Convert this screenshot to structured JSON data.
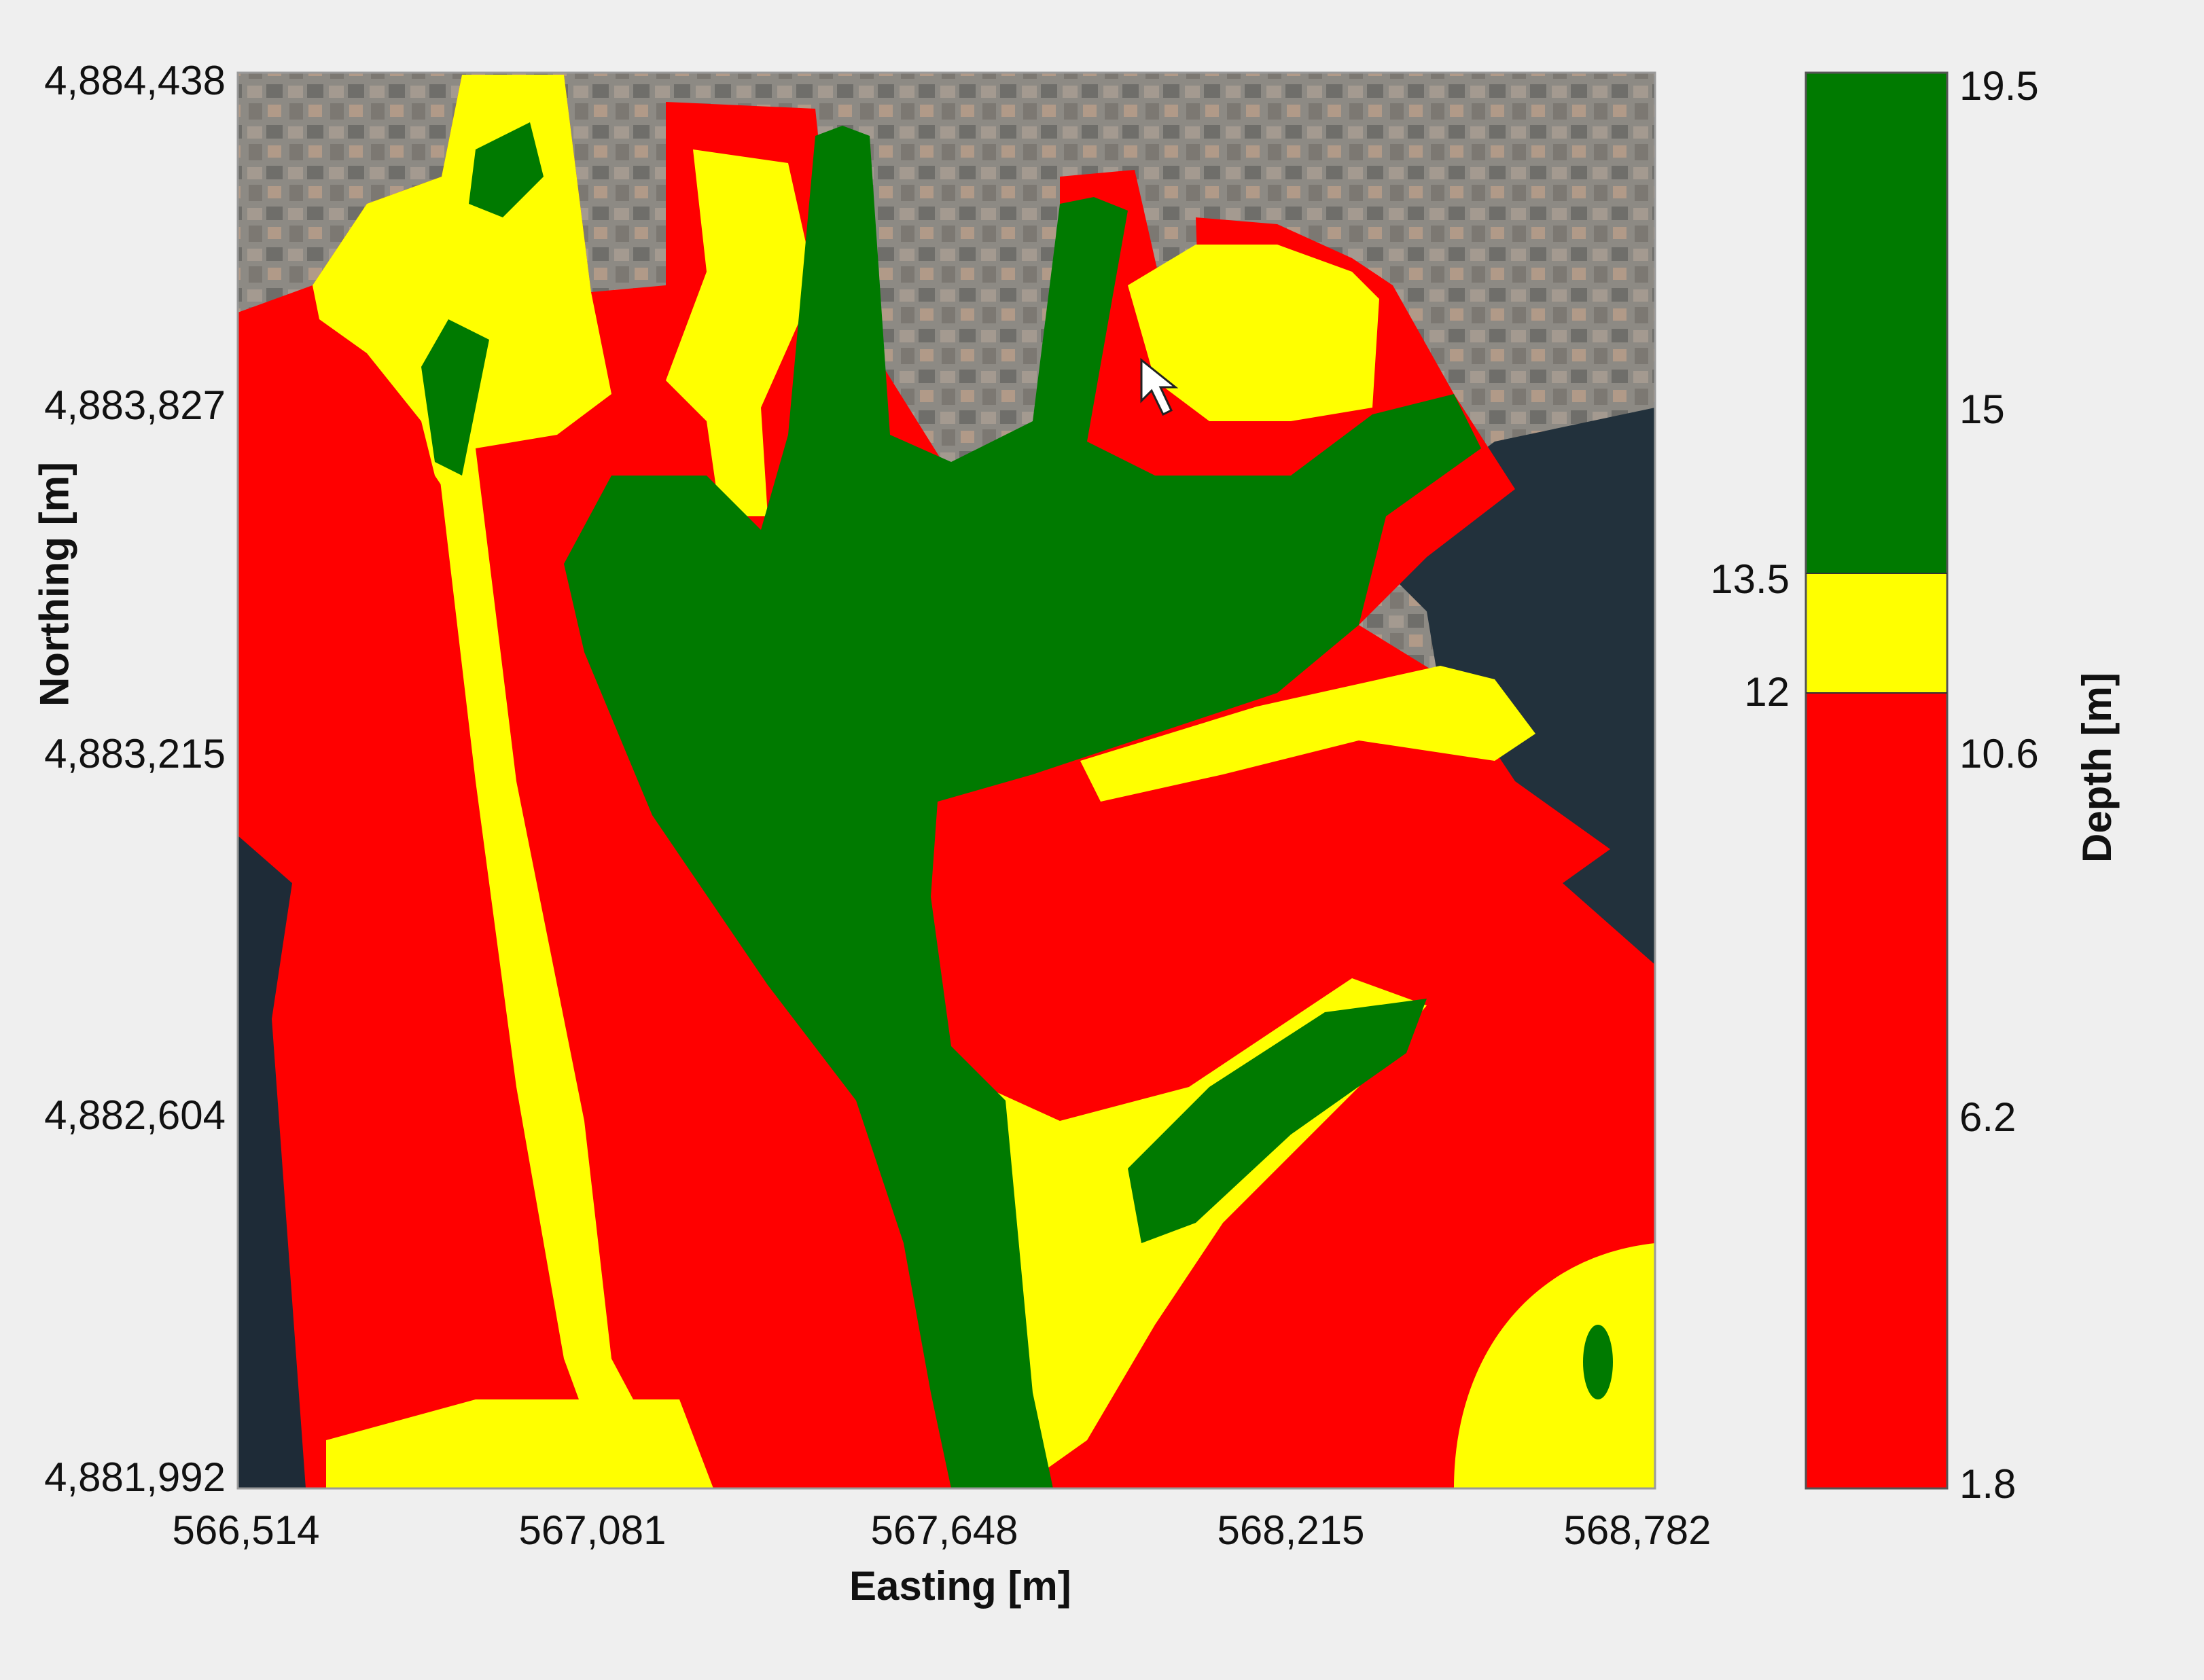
{
  "map": {
    "x_axis": {
      "title": "Easting [m]",
      "ticks": [
        "566,514",
        "567,081",
        "567,648",
        "568,215",
        "568,782"
      ]
    },
    "y_axis": {
      "title": "Northing [m]",
      "ticks": [
        "4,884,438",
        "4,883,827",
        "4,883,215",
        "4,882,604",
        "4,881,992"
      ]
    },
    "colorbar": {
      "title": "Depth [m]",
      "right_ticks": [
        "19.5",
        "15",
        "10.6",
        "6.2",
        "1.8"
      ],
      "left_ticks": [
        "13.5",
        "12"
      ],
      "classes": [
        {
          "range": "1.8–12",
          "color": "#ff0000"
        },
        {
          "range": "12–13.5",
          "color": "#ffff00"
        },
        {
          "range": "13.5–19.5",
          "color": "#007a00"
        }
      ]
    },
    "colors": {
      "shallow": "#ff0000",
      "medium": "#ffff00",
      "deep": "#007a00",
      "land": "#8a8a82",
      "water": "#1c2a36"
    }
  }
}
